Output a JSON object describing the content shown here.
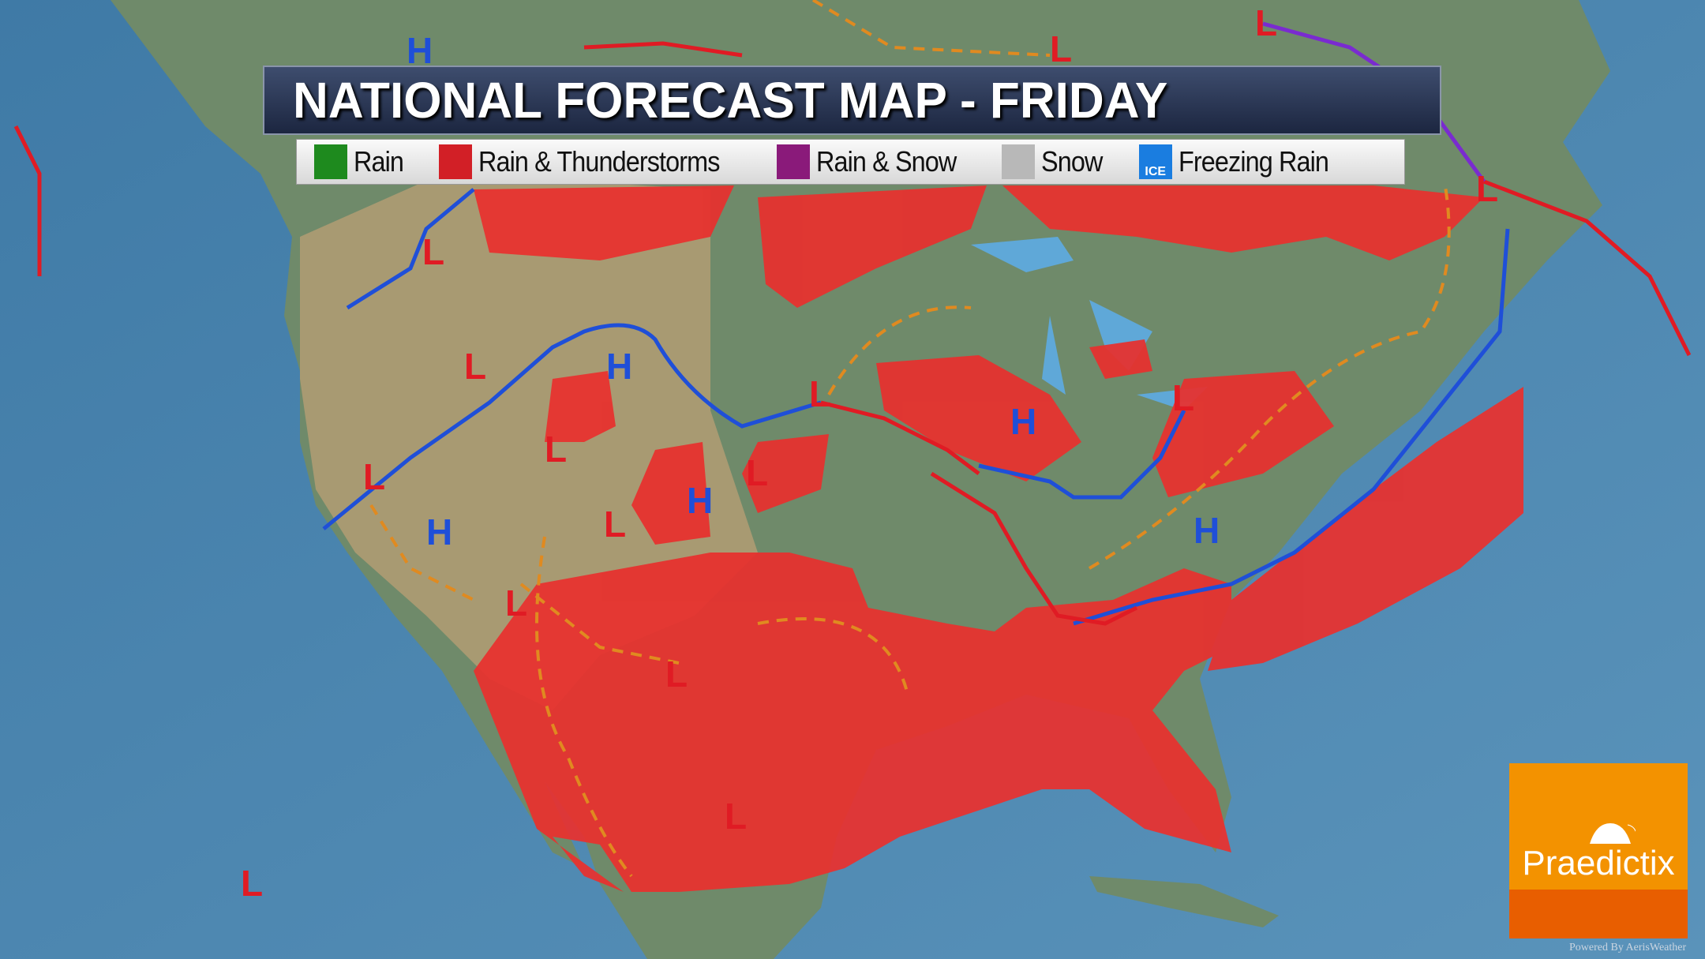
{
  "title": "NATIONAL FORECAST MAP - FRIDAY",
  "legend": [
    {
      "label": "Rain",
      "color": "#1e8a1e",
      "icon": "raindrop-icon"
    },
    {
      "label": "Rain & Thunderstorms",
      "color": "#d21f26",
      "icon": "lightning-icon"
    },
    {
      "label": "Rain & Snow",
      "color": "#8a1a7a",
      "icon": "snowflake-icon"
    },
    {
      "label": "Snow",
      "color": "#b8b8b8",
      "icon": "snowflake-icon"
    },
    {
      "label": "Freezing Rain",
      "color": "#1a7de0",
      "icon": "ice-icon",
      "badge": "ICE"
    }
  ],
  "pressure": {
    "high": "H",
    "low": "L"
  },
  "colors": {
    "ocean": "#4a86b0",
    "land": "#8f8a66",
    "storm_area": "#e8302e",
    "cold_front": "#1f4fd8",
    "warm_front": "#e01b24",
    "trough": "#e08a20",
    "occluded": "#7a2bd0"
  },
  "logo": {
    "name": "Praedictix"
  },
  "credit": "Powered By AerisWeather"
}
